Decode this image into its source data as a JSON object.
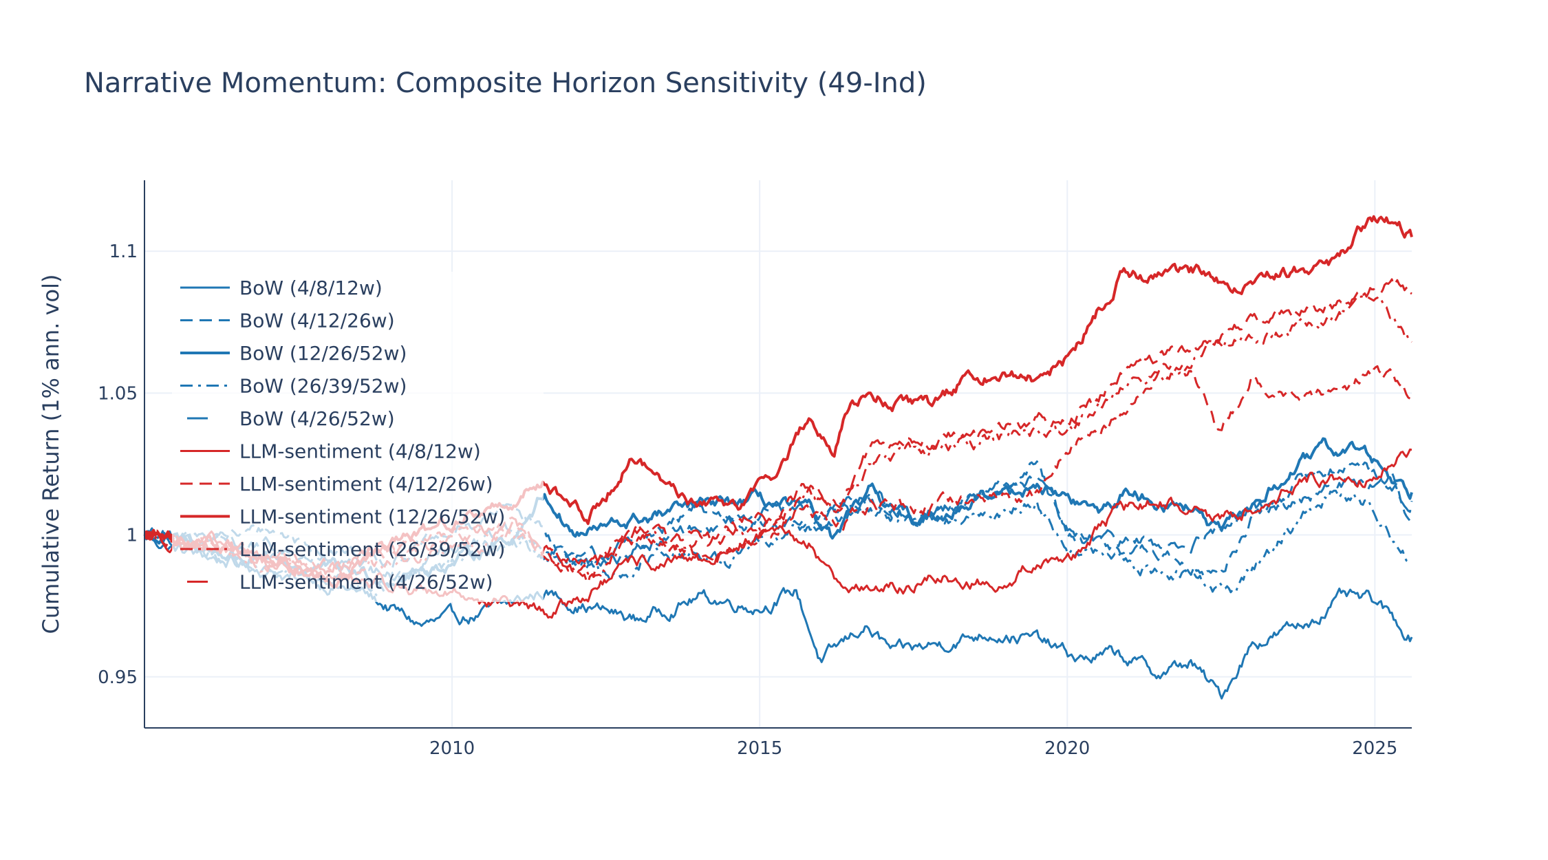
{
  "colors": {
    "bow": "#1f77b4",
    "llm": "#d62728",
    "grid": "#ebf0f8",
    "text": "#2a3f5f"
  },
  "chart_data": {
    "type": "line",
    "title": "Narrative Momentum: Composite Horizon Sensitivity (49-Ind)",
    "xlabel": "",
    "ylabel": "Cumulative Return (1% ann. vol)",
    "xlim": [
      2005.0,
      2025.6
    ],
    "ylim": [
      0.932,
      1.125
    ],
    "x_ticks": [
      2010,
      2015,
      2020,
      2025
    ],
    "x_tick_labels": [
      "2010",
      "2015",
      "2020",
      "2025"
    ],
    "y_ticks": [
      0.95,
      1.0,
      1.05,
      1.1
    ],
    "y_tick_labels": [
      "0.95",
      "1",
      "1.05",
      "1.1"
    ],
    "grid": true,
    "legend_position": "top-left (inside plot)",
    "series": [
      {
        "name": "BoW (4/8/12w)",
        "color": "#1f77b4",
        "dash": "solid",
        "width": 3,
        "x": [
          2005.0,
          2005.5,
          2006.5,
          2007.5,
          2008.5,
          2009.5,
          2010.5,
          2011.5,
          2012.0,
          2013.0,
          2014.0,
          2015.0,
          2015.6,
          2016.0,
          2016.7,
          2017.2,
          2018.0,
          2018.8,
          2019.5,
          2020.2,
          2020.8,
          2021.5,
          2022.0,
          2022.5,
          2023.0,
          2023.8,
          2024.5,
          2025.0,
          2025.6
        ],
        "y": [
          1.0,
          0.995,
          0.99,
          0.985,
          0.98,
          0.968,
          0.972,
          0.98,
          0.976,
          0.97,
          0.978,
          0.975,
          0.98,
          0.955,
          0.968,
          0.958,
          0.962,
          0.966,
          0.963,
          0.956,
          0.958,
          0.951,
          0.955,
          0.943,
          0.962,
          0.968,
          0.978,
          0.976,
          0.964
        ]
      },
      {
        "name": "BoW (4/12/26w)",
        "color": "#1f77b4",
        "dash": "dash",
        "width": 3,
        "x": [
          2005.0,
          2006.0,
          2007.0,
          2008.0,
          2009.0,
          2010.0,
          2011.0,
          2011.5,
          2012.0,
          2013.0,
          2014.0,
          2015.0,
          2016.0,
          2016.7,
          2017.5,
          2018.5,
          2019.5,
          2020.0,
          2021.0,
          2022.0,
          2022.5,
          2023.0,
          2024.0,
          2024.8,
          2025.3,
          2025.6
        ],
        "y": [
          1.0,
          0.998,
          1.002,
          0.995,
          0.992,
          1.0,
          1.01,
          1.002,
          0.99,
          0.997,
          1.008,
          1.005,
          1.0,
          1.01,
          1.005,
          1.012,
          1.025,
          0.998,
          0.995,
          0.99,
          0.985,
          1.005,
          1.022,
          1.025,
          1.02,
          1.005
        ]
      },
      {
        "name": "BoW (12/26/52w)",
        "color": "#1f77b4",
        "dash": "solid",
        "width": 4,
        "x": [
          2005.0,
          2006.0,
          2007.0,
          2008.0,
          2009.0,
          2010.0,
          2011.0,
          2011.5,
          2012.0,
          2013.0,
          2014.0,
          2015.0,
          2015.8,
          2016.2,
          2016.8,
          2017.5,
          2018.5,
          2019.5,
          2020.5,
          2021.0,
          2021.5,
          2022.0,
          2022.5,
          2023.0,
          2023.8,
          2024.2,
          2024.8,
          2025.6
        ],
        "y": [
          1.0,
          0.995,
          0.99,
          0.988,
          0.985,
          0.99,
          1.0,
          1.015,
          1.0,
          1.005,
          1.01,
          1.012,
          1.008,
          0.998,
          1.015,
          1.005,
          1.012,
          1.018,
          1.008,
          1.015,
          1.012,
          1.01,
          1.0,
          1.01,
          1.025,
          1.03,
          1.03,
          1.015
        ]
      },
      {
        "name": "BoW (26/39/52w)",
        "color": "#1f77b4",
        "dash": "dashdot",
        "width": 3,
        "x": [
          2005.0,
          2006.0,
          2007.0,
          2008.0,
          2009.0,
          2010.0,
          2011.0,
          2011.7,
          2012.5,
          2013.5,
          2014.5,
          2015.2,
          2016.0,
          2016.8,
          2017.5,
          2018.5,
          2019.5,
          2020.0,
          2021.0,
          2022.0,
          2022.7,
          2023.5,
          2024.3,
          2025.0,
          2025.6
        ],
        "y": [
          1.0,
          0.995,
          0.985,
          0.985,
          0.982,
          0.99,
          0.998,
          0.99,
          0.985,
          0.995,
          0.99,
          1.0,
          1.005,
          1.012,
          1.003,
          1.005,
          1.012,
          0.996,
          0.99,
          0.985,
          0.98,
          1.0,
          1.015,
          1.01,
          0.99
        ]
      },
      {
        "name": "BoW (4/26/52w)",
        "color": "#1f77b4",
        "dash": "longdash",
        "width": 3,
        "x": [
          2005.0,
          2006.0,
          2007.0,
          2008.0,
          2009.0,
          2010.0,
          2011.0,
          2011.6,
          2012.5,
          2013.5,
          2014.5,
          2015.3,
          2016.0,
          2016.8,
          2017.5,
          2018.5,
          2019.5,
          2020.0,
          2021.0,
          2022.0,
          2023.0,
          2024.0,
          2025.0,
          2025.6
        ],
        "y": [
          1.0,
          0.998,
          0.995,
          0.99,
          0.985,
          0.995,
          1.002,
          0.995,
          0.99,
          1.0,
          1.005,
          1.01,
          1.008,
          1.015,
          1.005,
          1.015,
          1.02,
          1.0,
          0.998,
          0.995,
          1.008,
          1.015,
          1.02,
          1.012
        ]
      },
      {
        "name": "LLM-sentiment (4/8/12w)",
        "color": "#d62728",
        "dash": "solid",
        "width": 3,
        "x": [
          2005.0,
          2006.0,
          2007.0,
          2008.0,
          2009.0,
          2010.0,
          2011.0,
          2011.5,
          2012.0,
          2013.0,
          2014.0,
          2015.0,
          2015.8,
          2016.2,
          2017.0,
          2018.0,
          2018.8,
          2019.5,
          2020.3,
          2020.8,
          2021.5,
          2022.0,
          2022.5,
          2023.0,
          2024.0,
          2024.8,
          2025.3,
          2025.6
        ],
        "y": [
          1.0,
          0.997,
          0.99,
          0.985,
          0.982,
          0.98,
          0.975,
          0.972,
          0.977,
          0.99,
          0.99,
          1.0,
          0.997,
          0.985,
          0.98,
          0.985,
          0.982,
          0.99,
          0.995,
          1.008,
          1.012,
          1.01,
          1.005,
          1.01,
          1.02,
          1.02,
          1.027,
          1.03
        ]
      },
      {
        "name": "LLM-sentiment (4/12/26w)",
        "color": "#d62728",
        "dash": "dash",
        "width": 3,
        "x": [
          2005.0,
          2006.0,
          2007.0,
          2008.0,
          2009.0,
          2010.0,
          2011.0,
          2011.6,
          2012.2,
          2012.8,
          2013.5,
          2014.2,
          2015.0,
          2015.7,
          2016.3,
          2016.8,
          2017.5,
          2018.5,
          2019.5,
          2020.2,
          2020.8,
          2021.5,
          2022.0,
          2022.5,
          2023.0,
          2023.8,
          2024.5,
          2025.0,
          2025.6
        ],
        "y": [
          1.0,
          0.998,
          0.992,
          0.99,
          0.995,
          1.0,
          1.005,
          0.99,
          0.985,
          1.0,
          0.995,
          0.99,
          1.0,
          1.01,
          1.005,
          1.01,
          1.01,
          1.012,
          1.015,
          1.035,
          1.04,
          1.06,
          1.058,
          1.035,
          1.055,
          1.048,
          1.05,
          1.06,
          1.05
        ]
      },
      {
        "name": "LLM-sentiment (12/26/52w)",
        "color": "#d62728",
        "dash": "solid",
        "width": 4,
        "x": [
          2005.0,
          2006.0,
          2007.0,
          2008.0,
          2009.0,
          2010.0,
          2011.0,
          2011.5,
          2012.2,
          2012.9,
          2013.5,
          2014.0,
          2014.7,
          2015.2,
          2015.8,
          2016.2,
          2016.5,
          2017.0,
          2017.8,
          2018.3,
          2019.0,
          2019.6,
          2020.0,
          2020.4,
          2020.9,
          2021.5,
          2022.2,
          2022.8,
          2023.5,
          2024.3,
          2024.8,
          2025.2,
          2025.6
        ],
        "y": [
          1.0,
          0.998,
          0.99,
          0.985,
          0.995,
          1.005,
          1.012,
          1.02,
          1.005,
          1.028,
          1.018,
          1.01,
          1.012,
          1.02,
          1.042,
          1.028,
          1.05,
          1.048,
          1.045,
          1.055,
          1.058,
          1.055,
          1.062,
          1.075,
          1.093,
          1.09,
          1.093,
          1.088,
          1.092,
          1.095,
          1.108,
          1.112,
          1.105
        ]
      },
      {
        "name": "LLM-sentiment (26/39/52w)",
        "color": "#d62728",
        "dash": "dashdot",
        "width": 3,
        "x": [
          2005.0,
          2006.0,
          2007.0,
          2008.0,
          2009.0,
          2010.0,
          2011.0,
          2011.6,
          2012.3,
          2013.0,
          2013.8,
          2014.5,
          2015.2,
          2015.8,
          2016.3,
          2016.8,
          2017.5,
          2018.5,
          2019.5,
          2020.0,
          2020.5,
          2021.0,
          2021.8,
          2022.3,
          2022.8,
          2023.5,
          2024.3,
          2025.0,
          2025.6
        ],
        "y": [
          1.0,
          0.996,
          0.99,
          0.985,
          0.99,
          0.995,
          1.0,
          0.992,
          0.985,
          1.0,
          0.995,
          1.0,
          1.005,
          1.015,
          1.008,
          1.025,
          1.03,
          1.033,
          1.036,
          1.035,
          1.045,
          1.055,
          1.058,
          1.065,
          1.07,
          1.073,
          1.075,
          1.085,
          1.068
        ]
      },
      {
        "name": "LLM-sentiment (4/26/52w)",
        "color": "#d62728",
        "dash": "longdash",
        "width": 3,
        "x": [
          2005.0,
          2006.0,
          2007.0,
          2008.0,
          2009.0,
          2010.0,
          2011.0,
          2011.6,
          2012.3,
          2013.0,
          2013.8,
          2014.5,
          2015.2,
          2015.8,
          2016.3,
          2016.8,
          2017.5,
          2018.5,
          2019.5,
          2020.0,
          2020.5,
          2021.0,
          2021.8,
          2022.5,
          2023.0,
          2023.8,
          2024.5,
          2025.2,
          2025.6
        ],
        "y": [
          1.0,
          0.997,
          0.992,
          0.99,
          0.993,
          0.997,
          1.003,
          0.995,
          0.988,
          1.002,
          0.998,
          1.002,
          1.008,
          1.018,
          1.012,
          1.03,
          1.032,
          1.035,
          1.04,
          1.04,
          1.048,
          1.06,
          1.063,
          1.068,
          1.075,
          1.078,
          1.082,
          1.09,
          1.085
        ]
      }
    ]
  }
}
